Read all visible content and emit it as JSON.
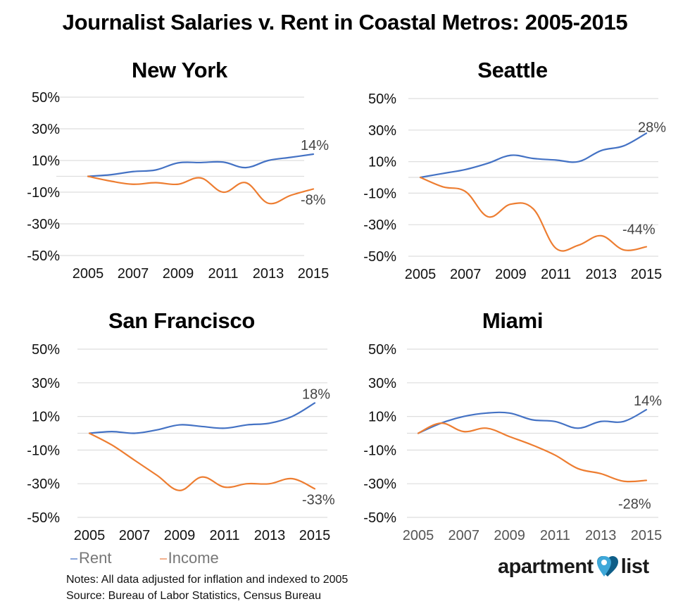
{
  "title": "Journalist Salaries v. Rent in Coastal Metros: 2005-2015",
  "colors": {
    "rent": "#4472c4",
    "income": "#ed7d31",
    "logo_light": "#3ea8d9",
    "logo_dark": "#0e5e88"
  },
  "legend": {
    "rent_label": "Rent",
    "income_label": "Income"
  },
  "notes": {
    "line1": "Notes: All data adjusted for inflation and indexed to 2005",
    "line2": "Source: Bureau of Labor Statistics, Census Bureau"
  },
  "logo": {
    "word1": "apartment",
    "word2": "list",
    "icon": "heart-pin-icon"
  },
  "chart_data": [
    {
      "type": "line",
      "title": "New York",
      "x": [
        2005,
        2006,
        2007,
        2008,
        2009,
        2010,
        2011,
        2012,
        2013,
        2014,
        2015
      ],
      "xticks": [
        "2005",
        "2007",
        "2009",
        "2011",
        "2013",
        "2015"
      ],
      "yticks": [
        "50%",
        "30%",
        "10%",
        "-10%",
        "-30%",
        "-50%"
      ],
      "ylim": [
        -50,
        50
      ],
      "series": [
        {
          "name": "Rent",
          "values": [
            0,
            1,
            3,
            4,
            8.5,
            8.7,
            9,
            5.5,
            10,
            12,
            14
          ],
          "end_label": "14%"
        },
        {
          "name": "Income",
          "values": [
            0,
            -3,
            -5,
            -4,
            -5,
            -1,
            -10,
            -4,
            -17,
            -12,
            -8
          ],
          "end_label": "-8%"
        }
      ]
    },
    {
      "type": "line",
      "title": "Seattle",
      "x": [
        2005,
        2006,
        2007,
        2008,
        2009,
        2010,
        2011,
        2012,
        2013,
        2014,
        2015
      ],
      "xticks": [
        "2005",
        "2007",
        "2009",
        "2011",
        "2013",
        "2015"
      ],
      "yticks": [
        "50%",
        "30%",
        "10%",
        "-10%",
        "-30%",
        "-50%"
      ],
      "ylim": [
        -50,
        50
      ],
      "series": [
        {
          "name": "Rent",
          "values": [
            0,
            2.5,
            5,
            9,
            14,
            12,
            11,
            10,
            17,
            20,
            28
          ],
          "end_label": "28%"
        },
        {
          "name": "Income",
          "values": [
            0,
            -6,
            -9,
            -25,
            -17,
            -20,
            -45,
            -43,
            -37,
            -46,
            -44
          ],
          "end_label": "-44%"
        }
      ]
    },
    {
      "type": "line",
      "title": "San Francisco",
      "x": [
        2005,
        2006,
        2007,
        2008,
        2009,
        2010,
        2011,
        2012,
        2013,
        2014,
        2015
      ],
      "xticks": [
        "2005",
        "2007",
        "2009",
        "2011",
        "2013",
        "2015"
      ],
      "yticks": [
        "50%",
        "30%",
        "10%",
        "-10%",
        "-30%",
        "-50%"
      ],
      "ylim": [
        -50,
        50
      ],
      "series": [
        {
          "name": "Rent",
          "values": [
            0,
            1,
            0,
            2,
            5,
            4,
            3,
            5,
            6,
            10,
            18
          ],
          "end_label": "18%"
        },
        {
          "name": "Income",
          "values": [
            0,
            -7,
            -16,
            -25,
            -34,
            -26,
            -32,
            -30,
            -30,
            -27,
            -33
          ],
          "end_label": "-33%"
        }
      ]
    },
    {
      "type": "line",
      "title": "Miami",
      "x": [
        2005,
        2006,
        2007,
        2008,
        2009,
        2010,
        2011,
        2012,
        2013,
        2014,
        2015
      ],
      "xticks": [
        "2005",
        "2007",
        "2009",
        "2011",
        "2013",
        "2015"
      ],
      "yticks": [
        "50%",
        "30%",
        "10%",
        "-10%",
        "-30%",
        "-50%"
      ],
      "ylim": [
        -50,
        50
      ],
      "series": [
        {
          "name": "Rent",
          "values": [
            0,
            6,
            10,
            12,
            12,
            8,
            7,
            3,
            7,
            7,
            14
          ],
          "end_label": "14%"
        },
        {
          "name": "Income",
          "values": [
            0,
            6,
            1,
            3,
            -2,
            -7,
            -13,
            -21,
            -24,
            -28.5,
            -28
          ],
          "end_label": "-28%"
        }
      ]
    }
  ]
}
